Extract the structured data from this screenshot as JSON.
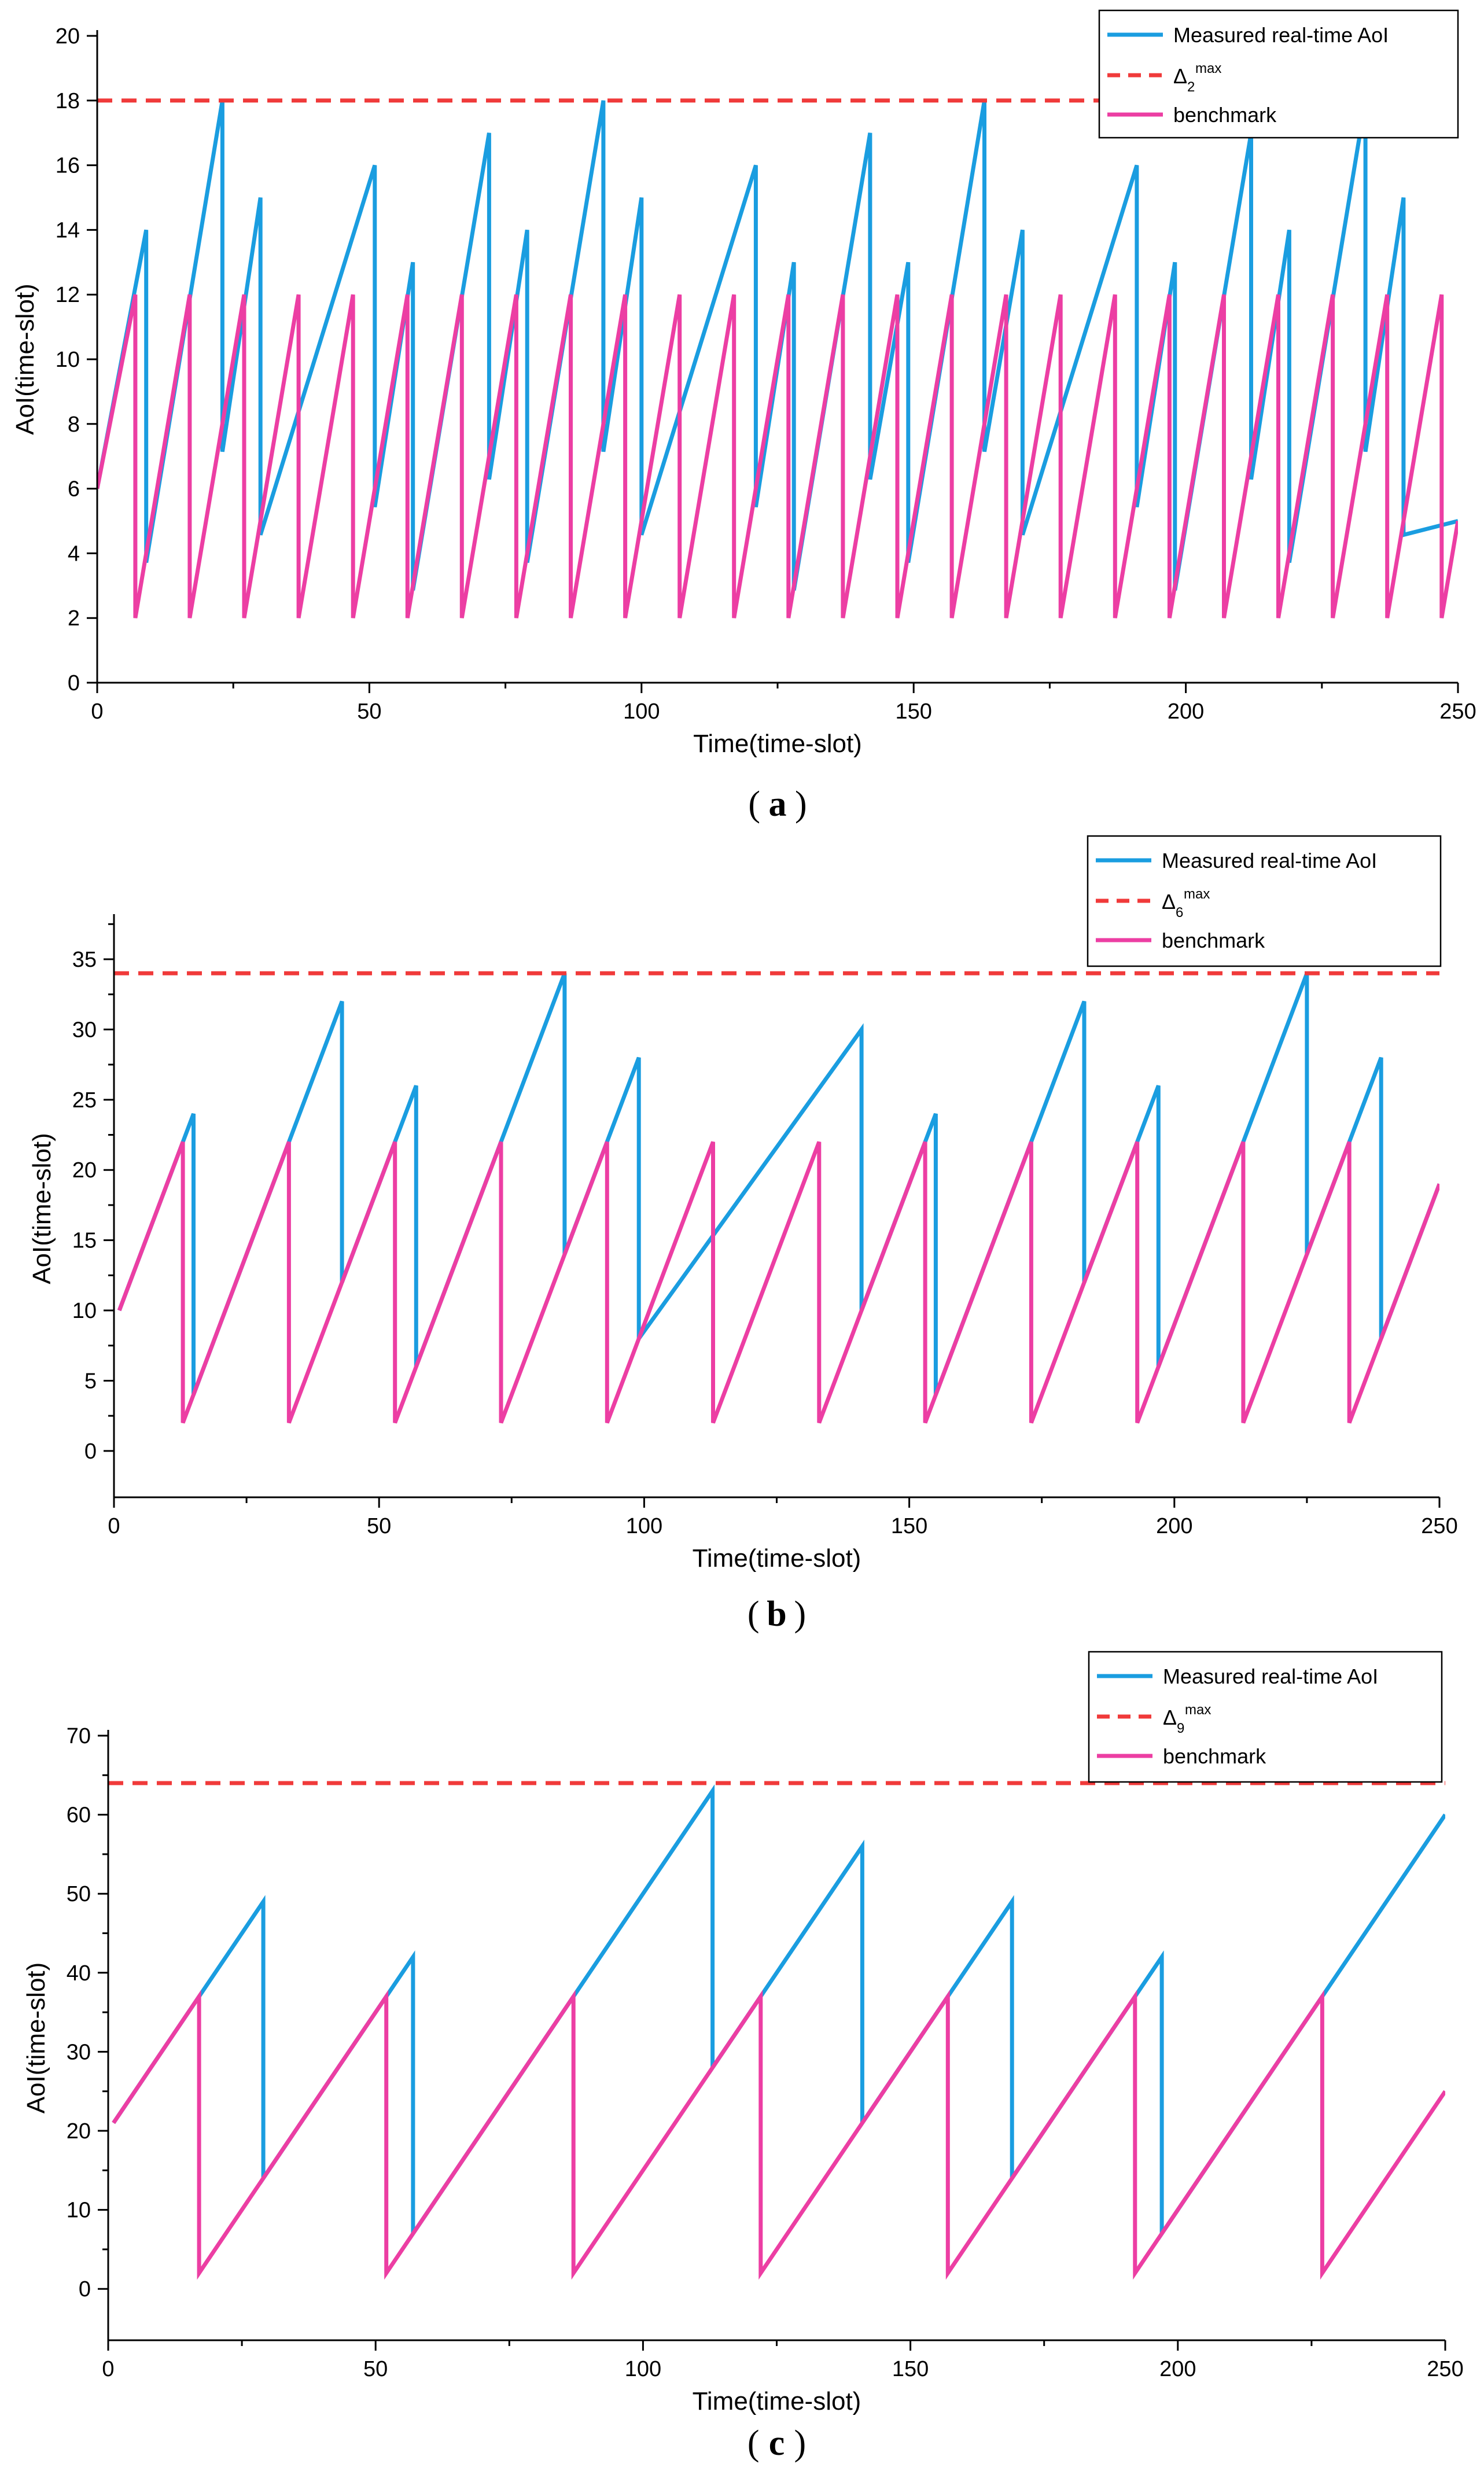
{
  "chart_data": [
    {
      "panel": "a",
      "type": "line",
      "caption_letter": "a",
      "title": "",
      "xlabel": "Time(time-slot)",
      "ylabel": "AoI(time-slot)",
      "xlim": [
        0,
        250
      ],
      "ylim": [
        0,
        20
      ],
      "xticks": [
        0,
        50,
        100,
        150,
        200,
        250
      ],
      "yticks": [
        0,
        2,
        4,
        6,
        8,
        10,
        12,
        14,
        16,
        18,
        20
      ],
      "x_minor_step": 25,
      "y_minor_step": null,
      "legend_position": "top-right",
      "legend": {
        "measured": "Measured real-time AoI",
        "threshold_symbol": "Δ",
        "threshold_sub": "2",
        "threshold_sup": "max",
        "benchmark": "benchmark"
      },
      "threshold": 18,
      "benchmark": {
        "start": [
          0,
          6
        ],
        "reset_low": 2,
        "peaks": [
          [
            7,
            12
          ],
          [
            17,
            12
          ],
          [
            27,
            12
          ],
          [
            37,
            12
          ],
          [
            47,
            12
          ],
          [
            57,
            12
          ],
          [
            67,
            12
          ],
          [
            77,
            12
          ],
          [
            87,
            12
          ],
          [
            97,
            12
          ],
          [
            107,
            12
          ],
          [
            117,
            12
          ],
          [
            127,
            12
          ],
          [
            137,
            12
          ],
          [
            147,
            12
          ],
          [
            157,
            12
          ],
          [
            167,
            12
          ],
          [
            177,
            12
          ],
          [
            187,
            12
          ],
          [
            197,
            12
          ],
          [
            207,
            12
          ],
          [
            217,
            12
          ],
          [
            227,
            12
          ],
          [
            237,
            12
          ],
          [
            247,
            12
          ]
        ],
        "end": [
          250,
          5
        ]
      },
      "measured": {
        "start": [
          0,
          6
        ],
        "peaks": [
          [
            9,
            14
          ],
          [
            23,
            18
          ],
          [
            30,
            15
          ],
          [
            51,
            16
          ],
          [
            58,
            13
          ],
          [
            72,
            17
          ],
          [
            79,
            14
          ],
          [
            93,
            18
          ],
          [
            100,
            15
          ],
          [
            121,
            16
          ],
          [
            128,
            13
          ],
          [
            142,
            17
          ],
          [
            149,
            13
          ],
          [
            163,
            18
          ],
          [
            170,
            14
          ],
          [
            191,
            16
          ],
          [
            198,
            13
          ],
          [
            212,
            17
          ],
          [
            219,
            14
          ],
          [
            233,
            18
          ],
          [
            240,
            15
          ]
        ],
        "end": [
          250,
          5
        ]
      }
    },
    {
      "panel": "b",
      "type": "line",
      "caption_letter": "b",
      "title": "",
      "xlabel": "Time(time-slot)",
      "ylabel": "AoI(time-slot)",
      "xlim": [
        0,
        250
      ],
      "ylim": [
        -3.3,
        37.8
      ],
      "xticks": [
        0,
        50,
        100,
        150,
        200,
        250
      ],
      "yticks": [
        0,
        5,
        10,
        15,
        20,
        25,
        30,
        35
      ],
      "x_minor_step": 25,
      "y_minor_step": 2.5,
      "legend_position": "top-right",
      "legend": {
        "measured": "Measured real-time AoI",
        "threshold_symbol": "Δ",
        "threshold_sub": "6",
        "threshold_sup": "max",
        "benchmark": "benchmark"
      },
      "threshold": 34,
      "benchmark": {
        "start": [
          1,
          10
        ],
        "reset_low": 2,
        "peaks": [
          [
            13,
            22
          ],
          [
            33,
            22
          ],
          [
            53,
            22
          ],
          [
            73,
            22
          ],
          [
            93,
            22
          ],
          [
            113,
            22
          ],
          [
            133,
            22
          ],
          [
            153,
            22
          ],
          [
            173,
            22
          ],
          [
            193,
            22
          ],
          [
            213,
            22
          ],
          [
            233,
            22
          ]
        ],
        "end": [
          250,
          19
        ]
      },
      "measured": {
        "start": [
          1,
          10
        ],
        "peaks": [
          [
            15,
            24
          ],
          [
            43,
            32
          ],
          [
            57,
            26
          ],
          [
            85,
            34
          ],
          [
            99,
            28
          ],
          [
            141,
            30
          ],
          [
            155,
            24
          ],
          [
            183,
            32
          ],
          [
            197,
            26
          ],
          [
            225,
            34
          ],
          [
            239,
            28
          ]
        ],
        "end": [
          250,
          19
        ]
      }
    },
    {
      "panel": "c",
      "type": "line",
      "caption_letter": "c",
      "title": "",
      "xlabel": "Time(time-slot)",
      "ylabel": "AoI(time-slot)",
      "xlim": [
        0,
        250
      ],
      "ylim": [
        -6.5,
        70
      ],
      "xticks": [
        0,
        50,
        100,
        150,
        200,
        250
      ],
      "yticks": [
        0,
        10,
        20,
        30,
        40,
        50,
        60,
        70
      ],
      "x_minor_step": 25,
      "y_minor_step": 5,
      "legend_position": "top-right",
      "legend": {
        "measured": "Measured real-time AoI",
        "threshold_symbol": "Δ",
        "threshold_sub": "9",
        "threshold_sup": "max",
        "benchmark": "benchmark"
      },
      "threshold": 64,
      "benchmark": {
        "start": [
          1,
          21
        ],
        "reset_low": 2,
        "peaks": [
          [
            17,
            37
          ],
          [
            52,
            37
          ],
          [
            87,
            37
          ],
          [
            122,
            37
          ],
          [
            157,
            37
          ],
          [
            192,
            37
          ],
          [
            227,
            37
          ]
        ],
        "end": [
          250,
          25
        ]
      },
      "measured": {
        "start": [
          1,
          21
        ],
        "peaks": [
          [
            29,
            49
          ],
          [
            57,
            42
          ],
          [
            113,
            63
          ],
          [
            141,
            56
          ],
          [
            169,
            49
          ],
          [
            197,
            42
          ]
        ],
        "end": [
          250,
          60
        ]
      }
    }
  ],
  "colors": {
    "measured": "#1a9de0",
    "threshold": "#f03a3a",
    "benchmark": "#ec3ea3",
    "axis": "#000000"
  }
}
